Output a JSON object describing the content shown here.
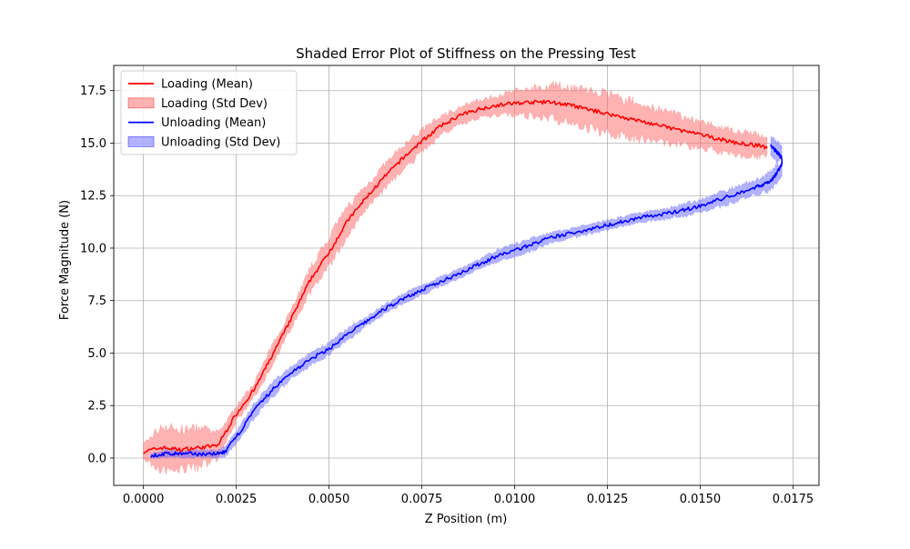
{
  "chart_data": {
    "type": "line",
    "title": "Shaded Error Plot of Stiffness on the Pressing Test",
    "xlabel": "Z Position (m)",
    "ylabel": "Force Magnitude (N)",
    "xlim": [
      -0.0008,
      0.0182
    ],
    "ylim": [
      -1.3,
      18.7
    ],
    "xticks": [
      0.0,
      0.0025,
      0.005,
      0.0075,
      0.01,
      0.0125,
      0.015,
      0.0175
    ],
    "xtick_labels": [
      "0.0000",
      "0.0025",
      "0.0050",
      "0.0075",
      "0.0100",
      "0.0125",
      "0.0150",
      "0.0175"
    ],
    "yticks": [
      0.0,
      2.5,
      5.0,
      7.5,
      10.0,
      12.5,
      15.0,
      17.5
    ],
    "ytick_labels": [
      "0.0",
      "2.5",
      "5.0",
      "7.5",
      "10.0",
      "12.5",
      "15.0",
      "17.5"
    ],
    "grid": true,
    "legend_position": "top-left",
    "legend": [
      {
        "label": "Loading (Mean)",
        "kind": "line",
        "color": "#ff0000"
      },
      {
        "label": "Loading (Std Dev)",
        "kind": "patch",
        "color": "#ff0000"
      },
      {
        "label": "Unloading (Mean)",
        "kind": "line",
        "color": "#0000ff"
      },
      {
        "label": "Unloading (Std Dev)",
        "kind": "patch",
        "color": "#0000ff"
      }
    ],
    "series": [
      {
        "name": "Loading (Mean)",
        "color": "#ff0000",
        "band_color": "#ff6666",
        "x": [
          0.0,
          0.0005,
          0.001,
          0.0015,
          0.002,
          0.0025,
          0.003,
          0.0035,
          0.004,
          0.0045,
          0.005,
          0.0055,
          0.006,
          0.0065,
          0.007,
          0.0075,
          0.008,
          0.0085,
          0.009,
          0.0095,
          0.01,
          0.0105,
          0.011,
          0.0115,
          0.012,
          0.0125,
          0.013,
          0.0135,
          0.014,
          0.0145,
          0.015,
          0.0155,
          0.016,
          0.0165,
          0.0168
        ],
        "y": [
          0.3,
          0.5,
          0.4,
          0.5,
          0.6,
          2.1,
          3.3,
          5.0,
          6.7,
          8.5,
          9.8,
          11.3,
          12.4,
          13.4,
          14.3,
          15.1,
          15.8,
          16.3,
          16.6,
          16.8,
          16.9,
          16.95,
          16.95,
          16.8,
          16.6,
          16.4,
          16.2,
          16.0,
          15.8,
          15.6,
          15.4,
          15.2,
          15.0,
          14.9,
          14.8
        ],
        "band": [
          0.3,
          0.9,
          0.8,
          0.8,
          0.5,
          0.3,
          0.3,
          0.4,
          0.4,
          0.5,
          0.6,
          0.6,
          0.5,
          0.5,
          0.5,
          0.45,
          0.4,
          0.35,
          0.35,
          0.4,
          0.5,
          0.6,
          0.7,
          0.75,
          0.8,
          0.8,
          0.75,
          0.7,
          0.65,
          0.6,
          0.55,
          0.5,
          0.5,
          0.45,
          0.4
        ]
      },
      {
        "name": "Unloading (Mean)",
        "color": "#0000ff",
        "band_color": "#6666ff",
        "x": [
          0.0002,
          0.0006,
          0.001,
          0.0015,
          0.002,
          0.0022,
          0.0025,
          0.003,
          0.0035,
          0.004,
          0.0045,
          0.005,
          0.0055,
          0.006,
          0.0065,
          0.007,
          0.0075,
          0.008,
          0.0085,
          0.009,
          0.0095,
          0.01,
          0.0105,
          0.011,
          0.0115,
          0.012,
          0.0125,
          0.013,
          0.0135,
          0.014,
          0.0145,
          0.015,
          0.0155,
          0.016,
          0.0165,
          0.0168,
          0.017,
          0.0171,
          0.0172,
          0.0172,
          0.0171,
          0.017,
          0.0169
        ],
        "y": [
          0.1,
          0.2,
          0.2,
          0.2,
          0.2,
          0.3,
          1.0,
          2.3,
          3.3,
          4.1,
          4.7,
          5.2,
          5.9,
          6.5,
          7.1,
          7.6,
          8.0,
          8.4,
          8.8,
          9.2,
          9.6,
          9.9,
          10.2,
          10.5,
          10.7,
          10.9,
          11.1,
          11.3,
          11.5,
          11.6,
          11.8,
          12.0,
          12.3,
          12.6,
          12.9,
          13.1,
          13.4,
          13.7,
          14.0,
          14.3,
          14.5,
          14.7,
          14.9
        ],
        "band": [
          0.1,
          0.15,
          0.15,
          0.15,
          0.15,
          0.2,
          0.25,
          0.3,
          0.3,
          0.25,
          0.25,
          0.25,
          0.25,
          0.2,
          0.2,
          0.2,
          0.2,
          0.2,
          0.2,
          0.2,
          0.25,
          0.25,
          0.25,
          0.2,
          0.2,
          0.2,
          0.2,
          0.2,
          0.2,
          0.2,
          0.25,
          0.25,
          0.3,
          0.3,
          0.3,
          0.35,
          0.35,
          0.4,
          0.45,
          0.45,
          0.45,
          0.4,
          0.35
        ]
      }
    ]
  }
}
